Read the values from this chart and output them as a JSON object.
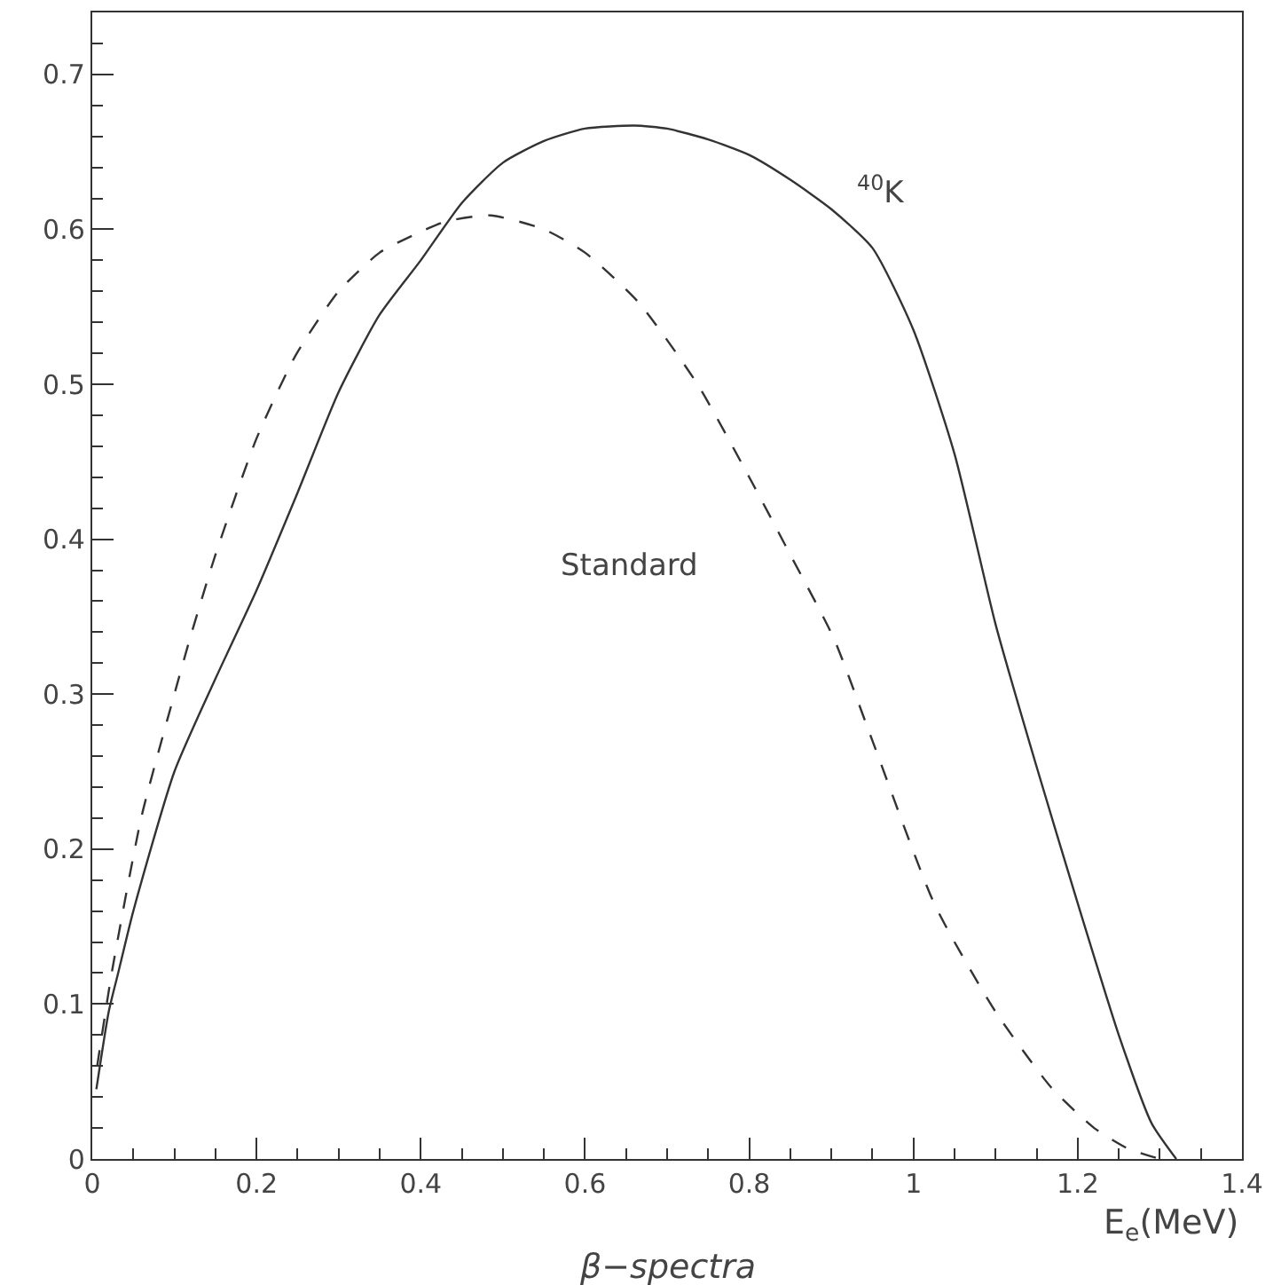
{
  "chart_data": {
    "type": "line",
    "title": "β−spectra",
    "xlabel": "E$_{e}$(MeV)",
    "xlim": [
      0,
      1.4
    ],
    "xticks": [
      0,
      0.2,
      0.4,
      0.6,
      0.8,
      1,
      1.2,
      1.4
    ],
    "ylim": [
      0,
      0.74
    ],
    "yticks": [
      0,
      0.1,
      0.2,
      0.3,
      0.4,
      0.5,
      0.6,
      0.7
    ],
    "legend": false,
    "marker": "none",
    "series": [
      {
        "name": "$^{40}$K",
        "color": "#333333",
        "line_style": "solid",
        "x": [
          0.005,
          0.02,
          0.032,
          0.05,
          0.1,
          0.15,
          0.2,
          0.25,
          0.3,
          0.35,
          0.4,
          0.45,
          0.5,
          0.55,
          0.6,
          0.66,
          0.7,
          0.75,
          0.8,
          0.85,
          0.9,
          0.95,
          1.0,
          1.05,
          1.1,
          1.15,
          1.2,
          1.25,
          1.29,
          1.32
        ],
        "values": [
          0.045,
          0.095,
          0.121,
          0.16,
          0.25,
          0.31,
          0.367,
          0.43,
          0.495,
          0.545,
          0.58,
          0.617,
          0.643,
          0.657,
          0.665,
          0.667,
          0.665,
          0.658,
          0.648,
          0.632,
          0.613,
          0.588,
          0.535,
          0.455,
          0.345,
          0.253,
          0.165,
          0.08,
          0.023,
          0
        ]
      },
      {
        "name": "Standard",
        "color": "#333333",
        "line_style": "dashed",
        "x": [
          0.006,
          0.024,
          0.06,
          0.1,
          0.119,
          0.15,
          0.2,
          0.248,
          0.3,
          0.35,
          0.39,
          0.43,
          0.485,
          0.55,
          0.6,
          0.665,
          0.737,
          0.8,
          0.85,
          0.903,
          0.95,
          1.026,
          1.1,
          1.168,
          1.22,
          1.26,
          1.3
        ],
        "values": [
          0.06,
          0.121,
          0.221,
          0.3,
          0.336,
          0.39,
          0.465,
          0.519,
          0.56,
          0.585,
          0.596,
          0.605,
          0.609,
          0.6,
          0.585,
          0.553,
          0.5,
          0.44,
          0.39,
          0.336,
          0.27,
          0.164,
          0.095,
          0.046,
          0.02,
          0.007,
          0
        ]
      }
    ]
  }
}
